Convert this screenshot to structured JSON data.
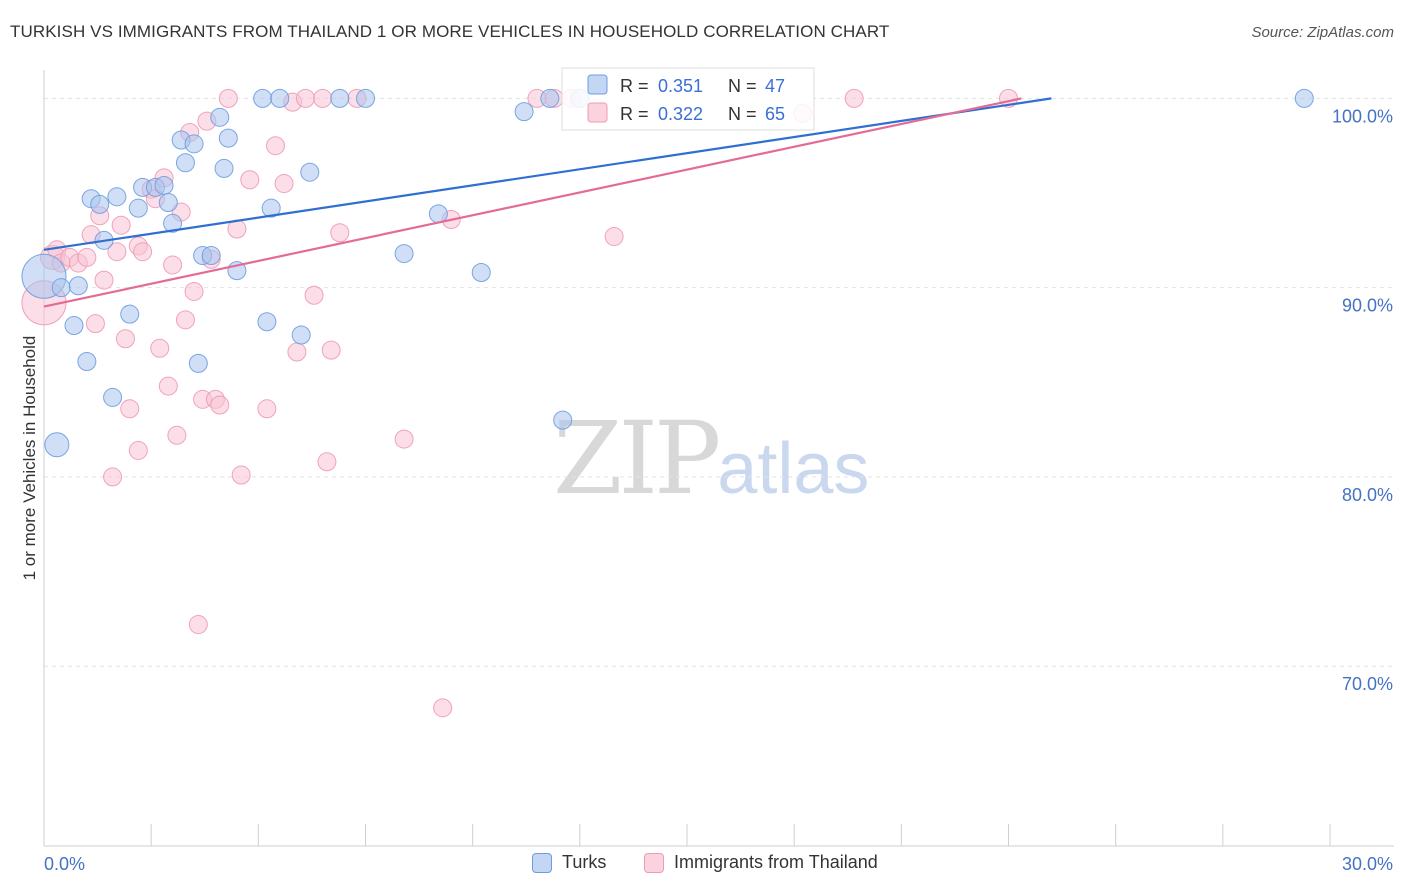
{
  "title": "TURKISH VS IMMIGRANTS FROM THAILAND 1 OR MORE VEHICLES IN HOUSEHOLD CORRELATION CHART",
  "source": "Source: ZipAtlas.com",
  "watermark": {
    "zip": "ZIP",
    "atlas": "atlas"
  },
  "colors": {
    "turks": "#6d9de0",
    "thailand": "#f09ab5",
    "turks_line": "#2e6fd1",
    "thailand_line": "#e46b96",
    "axis_text": "#4472c4"
  },
  "legend_top": [
    {
      "r_label": "R =",
      "r_value": "0.351",
      "n_label": "N =",
      "n_value": "47"
    },
    {
      "r_label": "R =",
      "r_value": "0.322",
      "n_label": "N =",
      "n_value": "65"
    }
  ],
  "legend_bottom": [
    {
      "label": "Turks"
    },
    {
      "label": "Immigrants from Thailand"
    }
  ],
  "chart_data": {
    "type": "scatter",
    "title": "TURKISH VS IMMIGRANTS FROM THAILAND 1 OR MORE VEHICLES IN HOUSEHOLD CORRELATION CHART",
    "xlabel": "",
    "ylabel": "1 or more Vehicles in Household",
    "xlim": [
      0,
      30
    ],
    "ylim": [
      60.5,
      101.5
    ],
    "x_tick_labels": [
      "0.0%",
      "30.0%"
    ],
    "y_ticks": [
      100,
      90,
      80,
      70
    ],
    "y_tick_labels": [
      "100.0%",
      "90.0%",
      "80.0%",
      "70.0%"
    ],
    "series": [
      {
        "name": "Turks",
        "trend": {
          "x": [
            0,
            23.5
          ],
          "y": [
            92.0,
            100.0
          ]
        },
        "points": [
          {
            "x": 0.0,
            "y": 90.6,
            "s": 22
          },
          {
            "x": 0.3,
            "y": 81.7,
            "s": 12
          },
          {
            "x": 0.4,
            "y": 90.0,
            "s": 9
          },
          {
            "x": 0.7,
            "y": 88.0,
            "s": 9
          },
          {
            "x": 0.8,
            "y": 90.1,
            "s": 9
          },
          {
            "x": 1.0,
            "y": 86.1,
            "s": 9
          },
          {
            "x": 1.1,
            "y": 94.7,
            "s": 9
          },
          {
            "x": 1.3,
            "y": 94.4,
            "s": 9
          },
          {
            "x": 1.4,
            "y": 92.5,
            "s": 9
          },
          {
            "x": 1.6,
            "y": 84.2,
            "s": 9
          },
          {
            "x": 1.7,
            "y": 94.8,
            "s": 9
          },
          {
            "x": 2.0,
            "y": 88.6,
            "s": 9
          },
          {
            "x": 2.2,
            "y": 94.2,
            "s": 9
          },
          {
            "x": 2.3,
            "y": 95.3,
            "s": 9
          },
          {
            "x": 2.6,
            "y": 95.3,
            "s": 9
          },
          {
            "x": 2.8,
            "y": 95.4,
            "s": 9
          },
          {
            "x": 2.9,
            "y": 94.5,
            "s": 9
          },
          {
            "x": 3.0,
            "y": 93.4,
            "s": 9
          },
          {
            "x": 3.2,
            "y": 97.8,
            "s": 9
          },
          {
            "x": 3.3,
            "y": 96.6,
            "s": 9
          },
          {
            "x": 3.5,
            "y": 97.6,
            "s": 9
          },
          {
            "x": 3.6,
            "y": 86.0,
            "s": 9
          },
          {
            "x": 3.7,
            "y": 91.7,
            "s": 9
          },
          {
            "x": 3.9,
            "y": 91.7,
            "s": 9
          },
          {
            "x": 4.1,
            "y": 99.0,
            "s": 9
          },
          {
            "x": 4.2,
            "y": 96.3,
            "s": 9
          },
          {
            "x": 4.3,
            "y": 97.9,
            "s": 9
          },
          {
            "x": 4.5,
            "y": 90.9,
            "s": 9
          },
          {
            "x": 5.1,
            "y": 100.0,
            "s": 9
          },
          {
            "x": 5.2,
            "y": 88.2,
            "s": 9
          },
          {
            "x": 5.3,
            "y": 94.2,
            "s": 9
          },
          {
            "x": 5.5,
            "y": 100.0,
            "s": 9
          },
          {
            "x": 6.0,
            "y": 87.5,
            "s": 9
          },
          {
            "x": 6.2,
            "y": 96.1,
            "s": 9
          },
          {
            "x": 6.9,
            "y": 100.0,
            "s": 9
          },
          {
            "x": 7.5,
            "y": 100.0,
            "s": 9
          },
          {
            "x": 8.4,
            "y": 91.8,
            "s": 9
          },
          {
            "x": 9.2,
            "y": 93.9,
            "s": 9
          },
          {
            "x": 10.2,
            "y": 90.8,
            "s": 9
          },
          {
            "x": 11.2,
            "y": 99.3,
            "s": 9
          },
          {
            "x": 11.8,
            "y": 100.0,
            "s": 9
          },
          {
            "x": 12.1,
            "y": 83.0,
            "s": 9
          },
          {
            "x": 12.5,
            "y": 100.0,
            "s": 9
          },
          {
            "x": 29.4,
            "y": 100.0,
            "s": 9
          }
        ]
      },
      {
        "name": "Immigrants from Thailand",
        "trend": {
          "x": [
            0,
            22.8
          ],
          "y": [
            89.0,
            100.0
          ]
        },
        "points": [
          {
            "x": 0.0,
            "y": 89.2,
            "s": 22
          },
          {
            "x": 0.2,
            "y": 91.6,
            "s": 12
          },
          {
            "x": 0.3,
            "y": 92.0,
            "s": 9
          },
          {
            "x": 0.4,
            "y": 91.3,
            "s": 9
          },
          {
            "x": 0.6,
            "y": 91.6,
            "s": 9
          },
          {
            "x": 0.8,
            "y": 91.3,
            "s": 9
          },
          {
            "x": 1.0,
            "y": 91.6,
            "s": 9
          },
          {
            "x": 1.1,
            "y": 92.8,
            "s": 9
          },
          {
            "x": 1.2,
            "y": 88.1,
            "s": 9
          },
          {
            "x": 1.3,
            "y": 93.8,
            "s": 9
          },
          {
            "x": 1.4,
            "y": 90.4,
            "s": 9
          },
          {
            "x": 1.6,
            "y": 80.0,
            "s": 9
          },
          {
            "x": 1.7,
            "y": 91.9,
            "s": 9
          },
          {
            "x": 1.8,
            "y": 93.3,
            "s": 9
          },
          {
            "x": 1.9,
            "y": 87.3,
            "s": 9
          },
          {
            "x": 2.0,
            "y": 83.6,
            "s": 9
          },
          {
            "x": 2.2,
            "y": 92.2,
            "s": 9
          },
          {
            "x": 2.2,
            "y": 81.4,
            "s": 9
          },
          {
            "x": 2.3,
            "y": 91.9,
            "s": 9
          },
          {
            "x": 2.5,
            "y": 95.2,
            "s": 9
          },
          {
            "x": 2.6,
            "y": 94.7,
            "s": 9
          },
          {
            "x": 2.7,
            "y": 86.8,
            "s": 9
          },
          {
            "x": 2.8,
            "y": 95.8,
            "s": 9
          },
          {
            "x": 2.9,
            "y": 84.8,
            "s": 9
          },
          {
            "x": 3.0,
            "y": 91.2,
            "s": 9
          },
          {
            "x": 3.1,
            "y": 82.2,
            "s": 9
          },
          {
            "x": 3.2,
            "y": 94.0,
            "s": 9
          },
          {
            "x": 3.3,
            "y": 88.3,
            "s": 9
          },
          {
            "x": 3.4,
            "y": 98.2,
            "s": 9
          },
          {
            "x": 3.5,
            "y": 89.8,
            "s": 9
          },
          {
            "x": 3.6,
            "y": 72.2,
            "s": 9
          },
          {
            "x": 3.7,
            "y": 84.1,
            "s": 9
          },
          {
            "x": 3.8,
            "y": 98.8,
            "s": 9
          },
          {
            "x": 3.9,
            "y": 91.5,
            "s": 9
          },
          {
            "x": 4.0,
            "y": 84.1,
            "s": 9
          },
          {
            "x": 4.1,
            "y": 83.8,
            "s": 9
          },
          {
            "x": 4.3,
            "y": 100.0,
            "s": 9
          },
          {
            "x": 4.5,
            "y": 93.1,
            "s": 9
          },
          {
            "x": 4.6,
            "y": 80.1,
            "s": 9
          },
          {
            "x": 4.8,
            "y": 95.7,
            "s": 9
          },
          {
            "x": 5.2,
            "y": 83.6,
            "s": 9
          },
          {
            "x": 5.4,
            "y": 97.5,
            "s": 9
          },
          {
            "x": 5.6,
            "y": 95.5,
            "s": 9
          },
          {
            "x": 5.8,
            "y": 99.8,
            "s": 9
          },
          {
            "x": 5.9,
            "y": 86.6,
            "s": 9
          },
          {
            "x": 6.1,
            "y": 100.0,
            "s": 9
          },
          {
            "x": 6.3,
            "y": 89.6,
            "s": 9
          },
          {
            "x": 6.5,
            "y": 100.0,
            "s": 9
          },
          {
            "x": 6.6,
            "y": 80.8,
            "s": 9
          },
          {
            "x": 6.7,
            "y": 86.7,
            "s": 9
          },
          {
            "x": 6.9,
            "y": 92.9,
            "s": 9
          },
          {
            "x": 7.3,
            "y": 100.0,
            "s": 9
          },
          {
            "x": 8.4,
            "y": 82.0,
            "s": 9
          },
          {
            "x": 9.3,
            "y": 67.8,
            "s": 9
          },
          {
            "x": 9.5,
            "y": 93.6,
            "s": 9
          },
          {
            "x": 11.5,
            "y": 100.0,
            "s": 9
          },
          {
            "x": 11.9,
            "y": 100.0,
            "s": 9
          },
          {
            "x": 12.3,
            "y": 100.0,
            "s": 9
          },
          {
            "x": 13.3,
            "y": 92.7,
            "s": 9
          },
          {
            "x": 17.7,
            "y": 99.2,
            "s": 9
          },
          {
            "x": 18.9,
            "y": 100.0,
            "s": 9
          },
          {
            "x": 22.5,
            "y": 100.0,
            "s": 9
          }
        ]
      }
    ]
  }
}
